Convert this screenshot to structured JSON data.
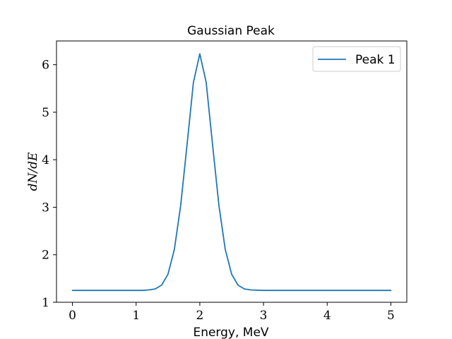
{
  "chart_data": {
    "type": "line",
    "title": "Gaussian Peak",
    "xlabel": "Energy, MeV",
    "ylabel": "dN/dE",
    "xlim": [
      -0.25,
      5.25
    ],
    "ylim": [
      1.0,
      6.5
    ],
    "x_ticks": [
      0,
      1,
      2,
      3,
      4,
      5
    ],
    "y_ticks": [
      1,
      2,
      3,
      4,
      5,
      6
    ],
    "grid": false,
    "legend_position": "top-right",
    "series": [
      {
        "name": "Peak 1",
        "color": "#1f77b4",
        "x": [
          0.0,
          0.25,
          0.5,
          0.75,
          1.0,
          1.1,
          1.2,
          1.3,
          1.4,
          1.5,
          1.6,
          1.7,
          1.8,
          1.9,
          2.0,
          2.1,
          2.2,
          2.3,
          2.4,
          2.5,
          2.6,
          2.7,
          2.8,
          3.0,
          3.5,
          4.0,
          4.5,
          5.0
        ],
        "y": [
          1.25,
          1.25,
          1.25,
          1.25,
          1.25,
          1.25,
          1.26,
          1.28,
          1.36,
          1.59,
          2.11,
          3.04,
          4.32,
          5.63,
          6.23,
          5.63,
          4.32,
          3.04,
          2.11,
          1.59,
          1.36,
          1.28,
          1.26,
          1.25,
          1.25,
          1.25,
          1.25,
          1.25
        ]
      }
    ]
  }
}
